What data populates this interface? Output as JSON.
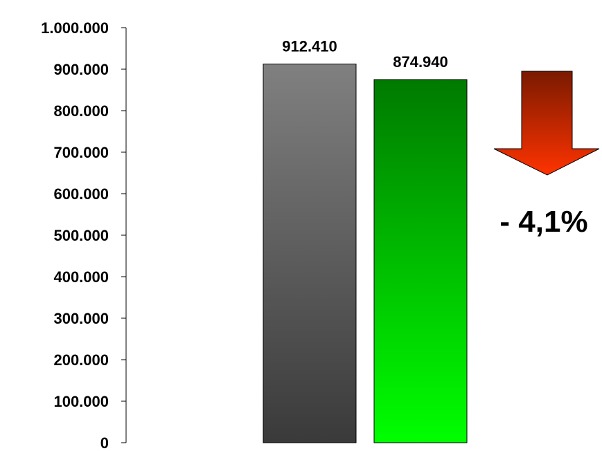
{
  "chart_data": {
    "type": "bar",
    "categories": [
      "",
      ""
    ],
    "values": [
      912410,
      874940
    ],
    "value_labels": [
      "912.410",
      "874.940"
    ],
    "title": "",
    "xlabel": "",
    "ylabel": "",
    "ylim": [
      0,
      1000000
    ],
    "y_ticks": [
      0,
      100000,
      200000,
      300000,
      400000,
      500000,
      600000,
      700000,
      800000,
      900000,
      1000000
    ],
    "y_tick_labels": [
      "0",
      "100.000",
      "200.000",
      "300.000",
      "400.000",
      "500.000",
      "600.000",
      "700.000",
      "800.000",
      "900.000",
      "1.000.000"
    ],
    "grid": false,
    "legend": "none",
    "bar_colors": [
      {
        "top": "#808080",
        "bottom": "#3a3a3a"
      },
      {
        "top": "#007a00",
        "bottom": "#00ff00"
      }
    ],
    "change_annotation": {
      "text": "- 4,1%",
      "direction": "down",
      "arrow_color_top": "#7a1a00",
      "arrow_color_bottom": "#ff3300",
      "icon": "down-arrow-icon"
    }
  }
}
